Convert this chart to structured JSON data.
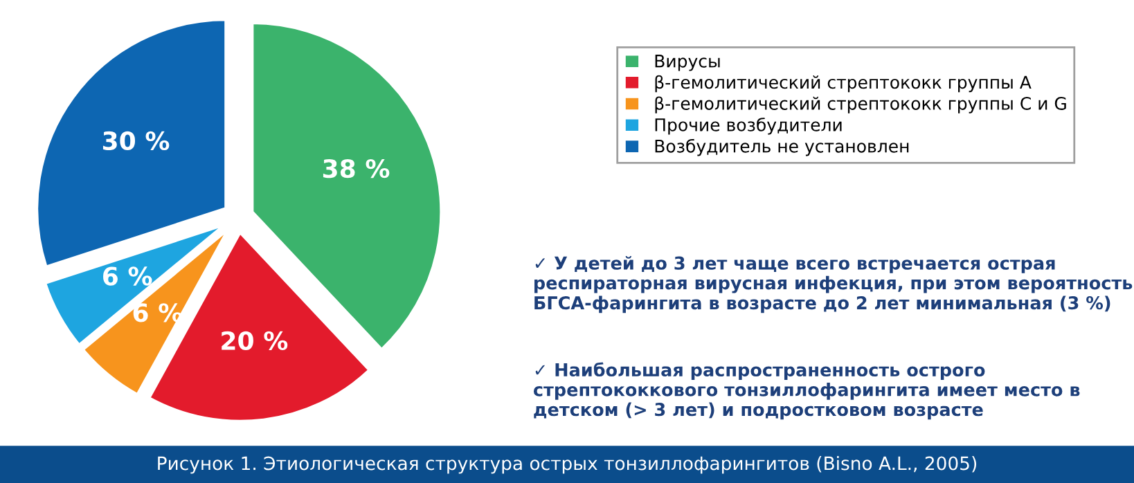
{
  "chart_data": {
    "type": "pie",
    "categories": [
      "Вирусы",
      "β-гемолитический стрептококк группы А",
      "β-гемолитический стрептококк группы С и G",
      "Прочие возбудители",
      "Возбудитель не установлен"
    ],
    "values": [
      38,
      20,
      6,
      6,
      30
    ],
    "colors": [
      "#3bb36c",
      "#e31b2c",
      "#f7941d",
      "#1ea5e0",
      "#0d66b2"
    ],
    "value_labels": [
      "38 %",
      "20 %",
      "6 %",
      "6 %",
      "30 %"
    ],
    "legend": "top right",
    "annotations": [
      "✓ У детей до 3 лет чаще всего встречается острая респираторная вирусная инфекция, при этом вероятность БГСА-фарингита в возрасте до 2 лет минимальная (3 %)",
      "✓ Наибольшая распространенность острого стрептококкового тонзиллофарингита имеет место в детском (> 3 лет) и подростковом возрасте",
      "Рисунок 1. Этиологическая структура острых тонзиллофарингитов (Bisno A.L., 2005)"
    ]
  }
}
